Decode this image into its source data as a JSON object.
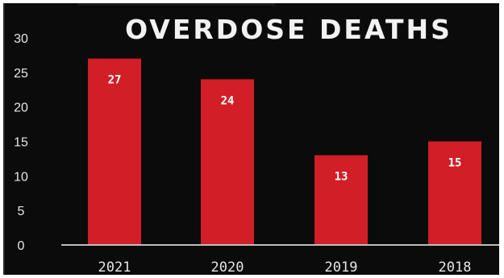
{
  "chart_data": {
    "type": "bar",
    "title": "OVERDOSE DEATHS",
    "categories": [
      "2021",
      "2020",
      "2019",
      "2018"
    ],
    "values": [
      27,
      24,
      13,
      15
    ],
    "data_labels": [
      "27",
      "24",
      "13",
      "15"
    ],
    "yticks": [
      "0",
      "5",
      "10",
      "15",
      "20",
      "25",
      "30"
    ],
    "ylim": [
      0,
      30
    ],
    "xlabel": "",
    "ylabel": "",
    "grid": false,
    "legend": "none",
    "colors": {
      "bar": "#d21e26",
      "background": "#0b0b0b",
      "text": "#f2f2f2"
    }
  }
}
